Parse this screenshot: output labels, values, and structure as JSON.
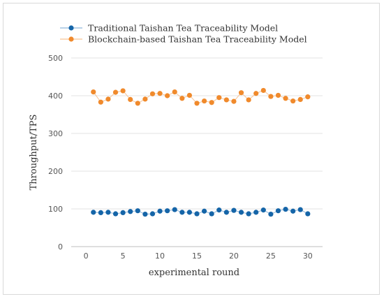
{
  "chart_data": {
    "type": "line",
    "xlabel": "experimental round",
    "ylabel": "Throughput/TPS",
    "xlim": [
      -2,
      32
    ],
    "ylim": [
      0,
      500
    ],
    "x_ticks": [
      0,
      5,
      10,
      15,
      20,
      25,
      30
    ],
    "y_ticks": [
      0,
      100,
      200,
      300,
      400,
      500
    ],
    "grid": "horizontal",
    "legend_position": "top",
    "series": [
      {
        "name": "Traditional Taishan Tea Traceability Model",
        "color": "#1565a8",
        "line_color": "#8fb6da",
        "x": [
          1,
          2,
          3,
          4,
          5,
          6,
          7,
          8,
          9,
          10,
          11,
          12,
          13,
          14,
          15,
          16,
          17,
          18,
          19,
          20,
          21,
          22,
          23,
          24,
          25,
          26,
          27,
          28,
          29,
          30
        ],
        "values": [
          91,
          90,
          91,
          87,
          90,
          93,
          95,
          86,
          87,
          94,
          95,
          98,
          91,
          91,
          87,
          94,
          87,
          97,
          91,
          96,
          91,
          87,
          91,
          97,
          86,
          95,
          99,
          94,
          98,
          87
        ]
      },
      {
        "name": "Blockchain-based Taishan Tea Traceability Model",
        "color": "#f08a2c",
        "line_color": "#f6c395",
        "x": [
          1,
          2,
          3,
          4,
          5,
          6,
          7,
          8,
          9,
          10,
          11,
          12,
          13,
          14,
          15,
          16,
          17,
          18,
          19,
          20,
          21,
          22,
          23,
          24,
          25,
          26,
          27,
          28,
          29,
          30
        ],
        "values": [
          410,
          383,
          391,
          409,
          413,
          390,
          380,
          391,
          405,
          406,
          400,
          410,
          393,
          401,
          380,
          386,
          382,
          395,
          389,
          385,
          408,
          389,
          406,
          414,
          398,
          401,
          393,
          386,
          390,
          397
        ]
      }
    ]
  }
}
